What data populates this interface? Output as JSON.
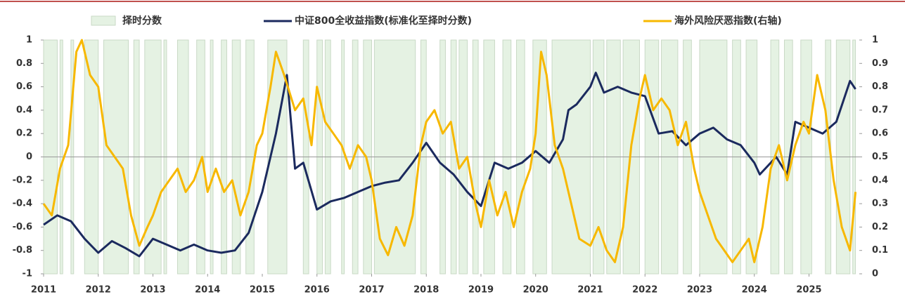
{
  "chart_data": {
    "type": "line",
    "xlim": [
      2011,
      2025.92
    ],
    "xticks": [
      2011,
      2012,
      2013,
      2014,
      2015,
      2016,
      2017,
      2018,
      2019,
      2020,
      2021,
      2022,
      2023,
      2024,
      2025
    ],
    "ylim": [
      -1,
      1
    ],
    "yticks": [
      1,
      0.8,
      0.6,
      0.4,
      0.2,
      0,
      -0.2,
      -0.4,
      -0.6,
      -0.8,
      -1
    ],
    "y2lim": [
      0,
      1
    ],
    "y2ticks": [
      1,
      0.9,
      0.8,
      0.7,
      0.6,
      0.5,
      0.4,
      0.3,
      0.2,
      0.1,
      0
    ],
    "series": [
      {
        "name": "择时分数",
        "kind": "step-area",
        "color": "#e5f2e3",
        "x": [
          2011.0,
          2011.25,
          2011.3,
          2011.35,
          2011.5,
          2011.55,
          2011.75,
          2012.0,
          2012.1,
          2012.55,
          2012.65,
          2012.75,
          2012.85,
          2013.15,
          2013.2,
          2013.25,
          2013.45,
          2013.65,
          2013.8,
          2013.95,
          2014.05,
          2014.1,
          2014.25,
          2014.35,
          2014.45,
          2014.6,
          2014.7,
          2014.85,
          2015.1,
          2015.45,
          2015.75,
          2015.85,
          2016.0,
          2016.1,
          2016.15,
          2016.25,
          2016.45,
          2016.5,
          2016.65,
          2016.75,
          2016.85,
          2017.0,
          2017.05,
          2017.8,
          2017.9,
          2018.0,
          2018.25,
          2018.35,
          2018.45,
          2018.55,
          2018.6,
          2018.75,
          2018.85,
          2018.95,
          2019.05,
          2019.25,
          2019.4,
          2019.55,
          2019.65,
          2019.8,
          2019.95,
          2020.2,
          2020.3,
          2021.0,
          2021.05,
          2021.25,
          2021.3,
          2021.55,
          2021.6,
          2021.9,
          2022.0,
          2022.25,
          2022.3,
          2022.6,
          2022.7,
          2022.85,
          2023.0,
          2023.5,
          2023.6,
          2023.75,
          2023.85,
          2024.05,
          2024.3,
          2024.45,
          2024.55,
          2024.7,
          2024.85,
          2025.05,
          2025.3,
          2025.4,
          2025.5,
          2025.75,
          2025.8,
          2025.85
        ],
        "values": [
          1,
          -1,
          1,
          -1,
          1,
          -1,
          1,
          -1,
          1,
          -1,
          1,
          -1,
          1,
          -1,
          1,
          -1,
          1,
          -1,
          1,
          -1,
          1,
          -1,
          1,
          -1,
          1,
          -1,
          1,
          -1,
          1,
          -1,
          1,
          -1,
          1,
          -1,
          1,
          -1,
          1,
          -1,
          1,
          -1,
          1,
          -1,
          1,
          -1,
          1,
          -1,
          1,
          -1,
          1,
          -1,
          1,
          -1,
          1,
          -1,
          1,
          -1,
          1,
          -1,
          1,
          -1,
          1,
          -1,
          1,
          -1,
          1,
          -1,
          1,
          -1,
          1,
          -1,
          1,
          -1,
          1,
          -1,
          1,
          -1,
          1,
          -1,
          1,
          -1,
          1,
          -1,
          1,
          -1,
          1,
          -1,
          1,
          -1,
          1,
          -1,
          1,
          -1,
          1,
          -1
        ]
      },
      {
        "name": "中证800全收益指数(标准化至择时分数)",
        "color": "#1b2a5e",
        "x": [
          2011.0,
          2011.25,
          2011.5,
          2011.75,
          2012.0,
          2012.25,
          2012.5,
          2012.75,
          2013.0,
          2013.25,
          2013.5,
          2013.75,
          2014.0,
          2014.25,
          2014.5,
          2014.75,
          2015.0,
          2015.25,
          2015.45,
          2015.6,
          2015.75,
          2016.0,
          2016.25,
          2016.5,
          2016.75,
          2017.0,
          2017.25,
          2017.5,
          2017.75,
          2018.0,
          2018.25,
          2018.5,
          2018.75,
          2019.0,
          2019.25,
          2019.5,
          2019.75,
          2020.0,
          2020.25,
          2020.5,
          2020.6,
          2020.75,
          2021.0,
          2021.1,
          2021.25,
          2021.5,
          2021.75,
          2022.0,
          2022.25,
          2022.5,
          2022.75,
          2023.0,
          2023.25,
          2023.5,
          2023.75,
          2024.0,
          2024.1,
          2024.4,
          2024.6,
          2024.75,
          2025.0,
          2025.25,
          2025.5,
          2025.75,
          2025.85
        ],
        "values": [
          -0.58,
          -0.5,
          -0.55,
          -0.7,
          -0.82,
          -0.72,
          -0.78,
          -0.85,
          -0.7,
          -0.75,
          -0.8,
          -0.75,
          -0.8,
          -0.82,
          -0.8,
          -0.65,
          -0.3,
          0.2,
          0.7,
          -0.1,
          -0.05,
          -0.45,
          -0.38,
          -0.35,
          -0.3,
          -0.25,
          -0.22,
          -0.2,
          -0.05,
          0.12,
          -0.05,
          -0.15,
          -0.3,
          -0.42,
          -0.05,
          -0.1,
          -0.05,
          0.05,
          -0.05,
          0.15,
          0.4,
          0.45,
          0.6,
          0.72,
          0.55,
          0.6,
          0.55,
          0.52,
          0.2,
          0.22,
          0.1,
          0.2,
          0.25,
          0.15,
          0.1,
          -0.05,
          -0.15,
          0.0,
          -0.15,
          0.3,
          0.25,
          0.2,
          0.3,
          0.65,
          0.58
        ]
      },
      {
        "name": "海外风险厌恶指数(右轴)",
        "color": "#f7b800",
        "axis": "y2",
        "x": [
          2011.0,
          2011.15,
          2011.3,
          2011.45,
          2011.6,
          2011.7,
          2011.85,
          2012.0,
          2012.15,
          2012.3,
          2012.45,
          2012.6,
          2012.75,
          2012.9,
          2013.0,
          2013.15,
          2013.3,
          2013.45,
          2013.6,
          2013.75,
          2013.9,
          2014.0,
          2014.15,
          2014.3,
          2014.45,
          2014.6,
          2014.75,
          2014.9,
          2015.0,
          2015.15,
          2015.25,
          2015.4,
          2015.6,
          2015.75,
          2015.9,
          2016.0,
          2016.15,
          2016.3,
          2016.45,
          2016.6,
          2016.75,
          2016.9,
          2017.0,
          2017.15,
          2017.3,
          2017.45,
          2017.6,
          2017.75,
          2017.9,
          2018.0,
          2018.15,
          2018.3,
          2018.45,
          2018.6,
          2018.75,
          2018.9,
          2019.0,
          2019.15,
          2019.3,
          2019.45,
          2019.6,
          2019.75,
          2019.9,
          2020.0,
          2020.1,
          2020.2,
          2020.35,
          2020.5,
          2020.65,
          2020.8,
          2021.0,
          2021.15,
          2021.3,
          2021.45,
          2021.6,
          2021.75,
          2021.9,
          2022.0,
          2022.15,
          2022.3,
          2022.45,
          2022.6,
          2022.75,
          2022.9,
          2023.0,
          2023.15,
          2023.3,
          2023.45,
          2023.6,
          2023.75,
          2023.9,
          2024.0,
          2024.15,
          2024.3,
          2024.45,
          2024.6,
          2024.75,
          2024.9,
          2025.0,
          2025.15,
          2025.3,
          2025.45,
          2025.6,
          2025.75,
          2025.85
        ],
        "values": [
          0.3,
          0.25,
          0.45,
          0.55,
          0.95,
          1.0,
          0.85,
          0.8,
          0.55,
          0.5,
          0.45,
          0.25,
          0.12,
          0.2,
          0.25,
          0.35,
          0.4,
          0.45,
          0.35,
          0.4,
          0.5,
          0.35,
          0.45,
          0.35,
          0.4,
          0.25,
          0.35,
          0.55,
          0.6,
          0.8,
          0.95,
          0.85,
          0.7,
          0.75,
          0.55,
          0.8,
          0.65,
          0.6,
          0.55,
          0.45,
          0.55,
          0.5,
          0.4,
          0.15,
          0.08,
          0.2,
          0.12,
          0.25,
          0.55,
          0.65,
          0.7,
          0.6,
          0.65,
          0.45,
          0.5,
          0.3,
          0.2,
          0.4,
          0.25,
          0.35,
          0.2,
          0.35,
          0.45,
          0.6,
          0.95,
          0.85,
          0.55,
          0.45,
          0.3,
          0.15,
          0.12,
          0.2,
          0.1,
          0.05,
          0.2,
          0.55,
          0.75,
          0.85,
          0.7,
          0.75,
          0.7,
          0.55,
          0.65,
          0.45,
          0.35,
          0.25,
          0.15,
          0.1,
          0.05,
          0.1,
          0.15,
          0.05,
          0.2,
          0.45,
          0.55,
          0.4,
          0.55,
          0.65,
          0.6,
          0.85,
          0.7,
          0.4,
          0.2,
          0.1,
          0.35
        ]
      }
    ]
  }
}
